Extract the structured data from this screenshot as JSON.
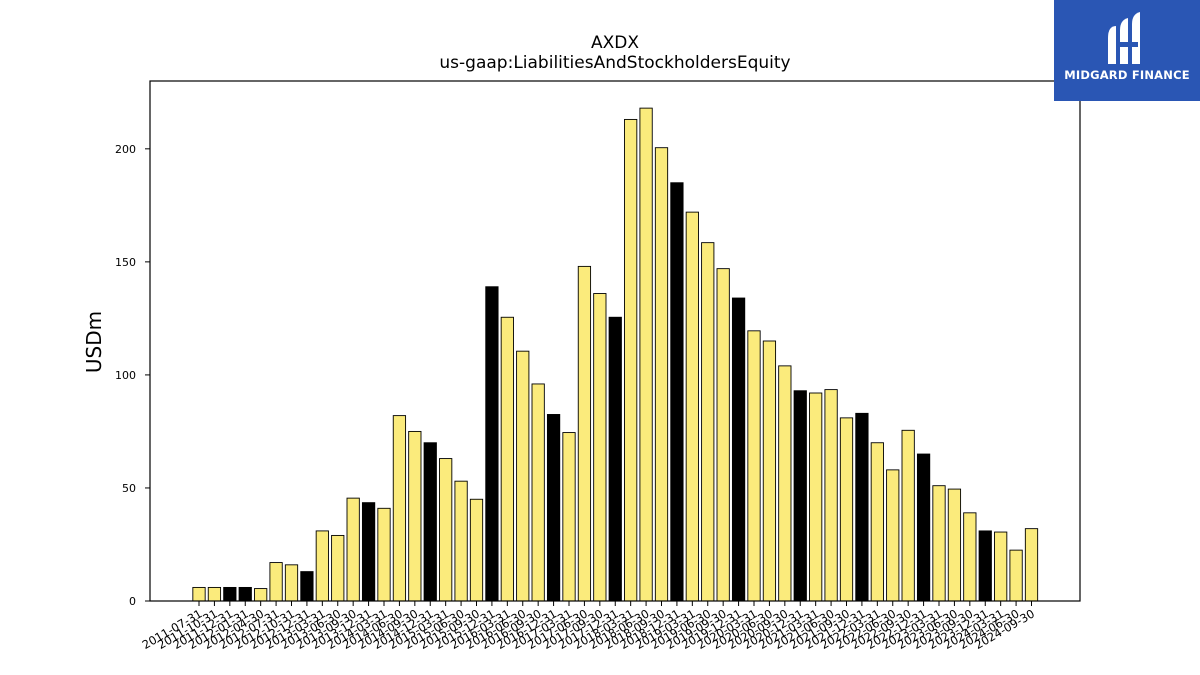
{
  "logo": {
    "text": "MIDGARD FINANCE",
    "icon": "midgard-m-logo-icon",
    "background": "#2a56b4"
  },
  "chart_data": {
    "type": "bar",
    "title": "AXDX",
    "subtitle": "us-gaap:LiabilitiesAndStockholdersEquity",
    "xlabel": "",
    "ylabel": "USDm",
    "ylim": [
      0,
      230
    ],
    "yticks": [
      0,
      50,
      100,
      150,
      200
    ],
    "grid": false,
    "colors": {
      "quarter": "#fbeb7c",
      "year_end": "#000000",
      "edge": "#000000"
    },
    "categories": [
      "2011-07-31",
      "2011-10-31",
      "2011-12-31",
      "2012-01-31",
      "2012-04-30",
      "2012-07-31",
      "2012-10-31",
      "2012-12-31",
      "2013-03-31",
      "2013-06-30",
      "2013-09-30",
      "2013-12-31",
      "2014-03-31",
      "2014-06-30",
      "2014-09-30",
      "2014-12-31",
      "2015-03-31",
      "2015-06-30",
      "2015-09-30",
      "2015-12-31",
      "2016-03-31",
      "2016-06-30",
      "2016-09-30",
      "2016-12-31",
      "2017-03-31",
      "2017-06-30",
      "2017-09-30",
      "2017-12-31",
      "2018-03-31",
      "2018-06-30",
      "2018-09-30",
      "2018-12-31",
      "2019-03-31",
      "2019-06-30",
      "2019-09-30",
      "2019-12-31",
      "2020-03-31",
      "2020-06-30",
      "2020-09-30",
      "2020-12-31",
      "2021-03-31",
      "2021-06-30",
      "2021-09-30",
      "2021-12-31",
      "2022-03-31",
      "2022-06-30",
      "2022-09-30",
      "2022-12-31",
      "2023-03-31",
      "2023-06-30",
      "2023-09-30",
      "2023-12-31",
      "2024-03-31",
      "2024-06-30",
      "2024-09-30"
    ],
    "values": [
      6,
      6,
      6,
      6,
      5.5,
      17,
      16,
      13,
      31,
      29,
      45.5,
      43.5,
      41,
      82,
      75,
      70,
      63,
      53,
      45,
      139,
      125.5,
      110.5,
      96,
      82.5,
      74.5,
      148,
      136,
      125.5,
      213,
      218,
      200.5,
      185,
      172,
      158.5,
      147,
      134,
      119.5,
      115,
      104,
      93,
      92,
      93.5,
      81,
      83,
      70,
      58,
      75.5,
      65,
      51,
      49.5,
      39,
      31,
      30.5,
      22.5,
      32
    ],
    "highlight": [
      false,
      false,
      true,
      true,
      false,
      false,
      false,
      true,
      false,
      false,
      false,
      true,
      false,
      false,
      false,
      true,
      false,
      false,
      false,
      true,
      false,
      false,
      false,
      true,
      false,
      false,
      false,
      true,
      false,
      false,
      false,
      true,
      false,
      false,
      false,
      true,
      false,
      false,
      false,
      true,
      false,
      false,
      false,
      true,
      false,
      false,
      false,
      true,
      false,
      false,
      false,
      true,
      false,
      false,
      false
    ]
  }
}
